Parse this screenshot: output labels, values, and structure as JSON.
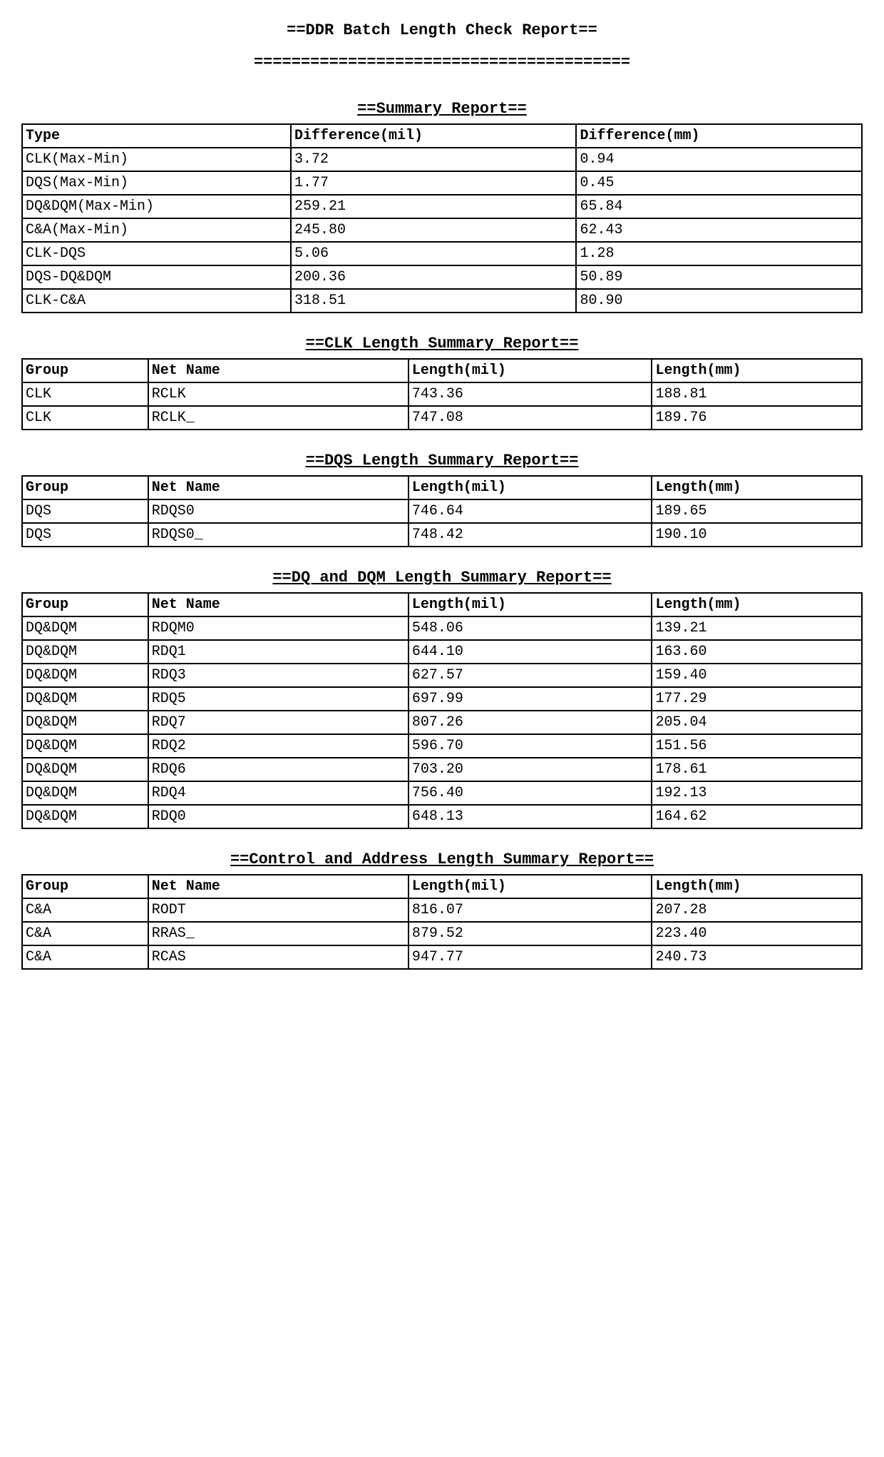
{
  "main_title": "==DDR Batch Length Check Report==",
  "divider": "========================================",
  "summary": {
    "title": "==Summary Report==",
    "columns": [
      "Type",
      "Difference(mil)",
      "Difference(mm)"
    ],
    "rows": [
      [
        "CLK(Max-Min)",
        "3.72",
        "0.94"
      ],
      [
        "DQS(Max-Min)",
        "1.77",
        "0.45"
      ],
      [
        "DQ&DQM(Max-Min)",
        "259.21",
        "65.84"
      ],
      [
        "C&A(Max-Min)",
        "245.80",
        "62.43"
      ],
      [
        "CLK-DQS",
        "5.06",
        "1.28"
      ],
      [
        "DQS-DQ&DQM",
        "200.36",
        "50.89"
      ],
      [
        "CLK-C&A",
        "318.51",
        "80.90"
      ]
    ]
  },
  "clk": {
    "title": "==CLK Length Summary Report==",
    "columns": [
      "Group",
      "Net Name",
      "Length(mil)",
      "Length(mm)"
    ],
    "rows": [
      [
        "CLK",
        "RCLK",
        "743.36",
        "188.81"
      ],
      [
        "CLK",
        "RCLK_",
        "747.08",
        "189.76"
      ]
    ]
  },
  "dqs": {
    "title": "==DQS Length Summary Report==",
    "columns": [
      "Group",
      "Net Name",
      "Length(mil)",
      "Length(mm)"
    ],
    "rows": [
      [
        "DQS",
        "RDQS0",
        "746.64",
        "189.65"
      ],
      [
        "DQS",
        "RDQS0_",
        "748.42",
        "190.10"
      ]
    ]
  },
  "dqdqm": {
    "title": "==DQ and DQM Length Summary Report==",
    "columns": [
      "Group",
      "Net Name",
      "Length(mil)",
      "Length(mm)"
    ],
    "rows": [
      [
        "DQ&DQM",
        "RDQM0",
        "548.06",
        "139.21"
      ],
      [
        "DQ&DQM",
        "RDQ1",
        "644.10",
        "163.60"
      ],
      [
        "DQ&DQM",
        "RDQ3",
        "627.57",
        "159.40"
      ],
      [
        "DQ&DQM",
        "RDQ5",
        "697.99",
        "177.29"
      ],
      [
        "DQ&DQM",
        "RDQ7",
        "807.26",
        "205.04"
      ],
      [
        "DQ&DQM",
        "RDQ2",
        "596.70",
        "151.56"
      ],
      [
        "DQ&DQM",
        "RDQ6",
        "703.20",
        "178.61"
      ],
      [
        "DQ&DQM",
        "RDQ4",
        "756.40",
        "192.13"
      ],
      [
        "DQ&DQM",
        "RDQ0",
        "648.13",
        "164.62"
      ]
    ]
  },
  "ca": {
    "title": "==Control and Address Length Summary Report==",
    "columns": [
      "Group",
      "Net Name",
      "Length(mil)",
      "Length(mm)"
    ],
    "rows": [
      [
        "C&A",
        "RODT",
        "816.07",
        "207.28"
      ],
      [
        "C&A",
        "RRAS_",
        "879.52",
        "223.40"
      ],
      [
        "C&A",
        "RCAS",
        "947.77",
        "240.73"
      ]
    ]
  }
}
